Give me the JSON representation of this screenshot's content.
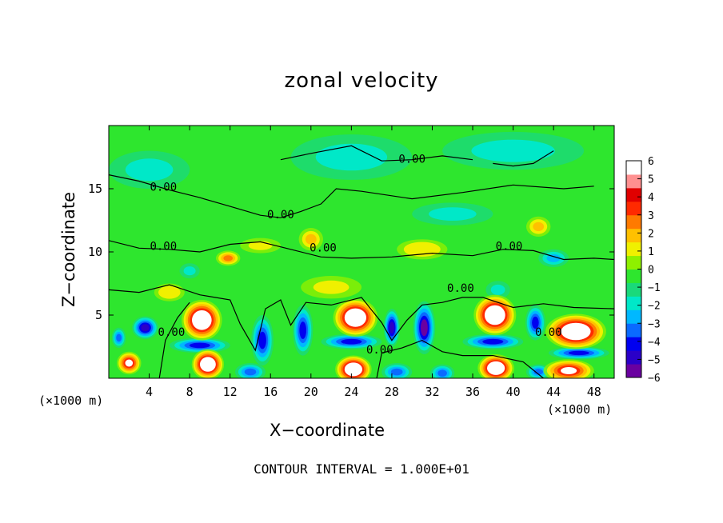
{
  "chart_data": {
    "type": "heatmap",
    "title": "zonal velocity",
    "xlabel": "X−coordinate",
    "ylabel": "Z−coordinate",
    "x_unit_left": "(×1000 m)",
    "x_unit_right": "(×1000 m)",
    "footnote": "CONTOUR INTERVAL = 1.000E+01",
    "xlim": [
      0,
      50
    ],
    "ylim": [
      0,
      20
    ],
    "x_ticks": [
      4,
      8,
      12,
      16,
      20,
      24,
      28,
      32,
      36,
      40,
      44,
      48
    ],
    "x_tick_labels": [
      "4",
      "8",
      "12",
      "16",
      "20",
      "24",
      "28",
      "32",
      "36",
      "40",
      "44",
      "48"
    ],
    "y_ticks": [
      5,
      10,
      15
    ],
    "y_tick_labels": [
      "5",
      "10",
      "15"
    ],
    "colorbar": {
      "min": -6,
      "max": 6,
      "ticks": [
        6,
        5,
        4,
        3,
        2,
        1,
        0,
        -1,
        -2,
        -3,
        -4,
        -5,
        -6
      ],
      "tick_labels": [
        "6",
        "5",
        "4",
        "3",
        "2",
        "1",
        "0",
        "−1",
        "−2",
        "−3",
        "−4",
        "−5",
        "−6"
      ],
      "colors": [
        "#6a00a0",
        "#2a00c8",
        "#0000f0",
        "#0a6aff",
        "#00b8ff",
        "#00e8c8",
        "#1ad97a",
        "#2ee62e",
        "#8ef000",
        "#f0f000",
        "#ffc000",
        "#ff7a00",
        "#ff2a00",
        "#e00000",
        "#ff9090",
        "#ffffff"
      ]
    },
    "contour_labels": [
      {
        "text": "0.00",
        "x": 30.0,
        "z": 17.3
      },
      {
        "text": "0.00",
        "x": 5.4,
        "z": 15.1
      },
      {
        "text": "0.00",
        "x": 17.0,
        "z": 12.9
      },
      {
        "text": "0.00",
        "x": 5.4,
        "z": 10.4
      },
      {
        "text": "0.00",
        "x": 21.2,
        "z": 10.3
      },
      {
        "text": "0.00",
        "x": 39.6,
        "z": 10.4
      },
      {
        "text": "0.00",
        "x": 34.8,
        "z": 7.1
      },
      {
        "text": "0.00",
        "x": 6.2,
        "z": 3.6
      },
      {
        "text": "0.00",
        "x": 26.8,
        "z": 2.2
      },
      {
        "text": "0.00",
        "x": 43.5,
        "z": 3.6
      }
    ],
    "features": [
      {
        "v": 3.0,
        "x": 20.0,
        "z": 11.0,
        "rx": 1.2,
        "rz": 0.9
      },
      {
        "v": 4.0,
        "x": 11.8,
        "z": 9.5,
        "rx": 1.2,
        "rz": 0.6
      },
      {
        "v": 3.0,
        "x": 42.5,
        "z": 12.0,
        "rx": 1.2,
        "rz": 0.8
      },
      {
        "v": 2.5,
        "x": 31.0,
        "z": 10.2,
        "rx": 2.5,
        "rz": 0.8
      },
      {
        "v": 2.0,
        "x": 22.0,
        "z": 7.2,
        "rx": 3.0,
        "rz": 0.9
      },
      {
        "v": 2.5,
        "x": 6.0,
        "z": 6.8,
        "rx": 1.5,
        "rz": 0.7
      },
      {
        "v": 2.0,
        "x": 15.0,
        "z": 10.5,
        "rx": 2.0,
        "rz": 0.6
      },
      {
        "v": -2.0,
        "x": 8.0,
        "z": 8.5,
        "rx": 1.0,
        "rz": 0.6
      },
      {
        "v": -2.2,
        "x": 44.0,
        "z": 9.5,
        "rx": 1.5,
        "rz": 0.7
      },
      {
        "v": -2.0,
        "x": 38.5,
        "z": 7.0,
        "rx": 1.2,
        "rz": 0.7
      },
      {
        "v": -1.5,
        "x": 24.0,
        "z": 17.5,
        "rx": 6.0,
        "rz": 1.8
      },
      {
        "v": -1.5,
        "x": 4.0,
        "z": 16.5,
        "rx": 4.0,
        "rz": 1.5
      },
      {
        "v": -1.2,
        "x": 40.0,
        "z": 18.0,
        "rx": 7.0,
        "rz": 1.5
      },
      {
        "v": -1.3,
        "x": 34.0,
        "z": 13.0,
        "rx": 4.0,
        "rz": 0.9
      },
      {
        "v": 7.5,
        "x": 9.2,
        "z": 4.6,
        "rx": 2.0,
        "rz": 1.6
      },
      {
        "v": 7.5,
        "x": 24.4,
        "z": 4.8,
        "rx": 2.2,
        "rz": 1.5
      },
      {
        "v": 7.5,
        "x": 38.2,
        "z": 5.0,
        "rx": 2.1,
        "rz": 1.6
      },
      {
        "v": 7.5,
        "x": 46.2,
        "z": 3.7,
        "rx": 3.0,
        "rz": 1.4
      },
      {
        "v": 7.5,
        "x": 9.8,
        "z": 1.1,
        "rx": 1.6,
        "rz": 1.2
      },
      {
        "v": 7.5,
        "x": 24.2,
        "z": 0.7,
        "rx": 1.8,
        "rz": 1.1
      },
      {
        "v": 7.5,
        "x": 38.3,
        "z": 0.8,
        "rx": 1.8,
        "rz": 1.1
      },
      {
        "v": 6.0,
        "x": 45.5,
        "z": 0.6,
        "rx": 2.5,
        "rz": 0.9
      },
      {
        "v": 6.0,
        "x": 2.0,
        "z": 1.2,
        "rx": 1.2,
        "rz": 0.9
      },
      {
        "v": -5.5,
        "x": 3.6,
        "z": 4.0,
        "rx": 1.3,
        "rz": 0.9
      },
      {
        "v": -5.0,
        "x": 15.2,
        "z": 3.0,
        "rx": 1.1,
        "rz": 2.0
      },
      {
        "v": -5.0,
        "x": 19.2,
        "z": 3.8,
        "rx": 1.0,
        "rz": 2.0
      },
      {
        "v": -6.0,
        "x": 31.2,
        "z": 4.0,
        "rx": 1.1,
        "rz": 2.1
      },
      {
        "v": -5.5,
        "x": 28.0,
        "z": 4.0,
        "rx": 0.8,
        "rz": 1.5
      },
      {
        "v": -4.5,
        "x": 42.2,
        "z": 4.4,
        "rx": 1.0,
        "rz": 1.4
      },
      {
        "v": -5.0,
        "x": 9.0,
        "z": 2.6,
        "rx": 3.0,
        "rz": 0.6
      },
      {
        "v": -5.0,
        "x": 24.0,
        "z": 2.9,
        "rx": 3.0,
        "rz": 0.6
      },
      {
        "v": -5.0,
        "x": 38.0,
        "z": 2.9,
        "rx": 3.0,
        "rz": 0.6
      },
      {
        "v": -4.5,
        "x": 46.5,
        "z": 2.0,
        "rx": 3.0,
        "rz": 0.5
      },
      {
        "v": -4.0,
        "x": 1.0,
        "z": 3.2,
        "rx": 0.7,
        "rz": 0.8
      },
      {
        "v": -4.0,
        "x": 14.0,
        "z": 0.5,
        "rx": 1.5,
        "rz": 0.7
      },
      {
        "v": -4.0,
        "x": 28.5,
        "z": 0.5,
        "rx": 1.5,
        "rz": 0.7
      },
      {
        "v": -4.0,
        "x": 33.0,
        "z": 0.4,
        "rx": 1.2,
        "rz": 0.7
      },
      {
        "v": -4.0,
        "x": 42.5,
        "z": 0.5,
        "rx": 1.2,
        "rz": 0.6
      }
    ],
    "contours": [
      [
        [
          0,
          16.1
        ],
        [
          3,
          15.6
        ],
        [
          6,
          14.9
        ],
        [
          9,
          14.3
        ],
        [
          12,
          13.6
        ],
        [
          15,
          12.9
        ],
        [
          17,
          12.7
        ],
        [
          19,
          13.2
        ],
        [
          21,
          13.8
        ],
        [
          22.5,
          15.0
        ],
        [
          25,
          14.8
        ],
        [
          30,
          14.2
        ],
        [
          35,
          14.7
        ],
        [
          40,
          15.3
        ],
        [
          45,
          15.0
        ],
        [
          48,
          15.2
        ]
      ],
      [
        [
          17,
          17.3
        ],
        [
          20,
          17.8
        ],
        [
          24,
          18.4
        ],
        [
          27,
          17.2
        ],
        [
          30,
          17.3
        ],
        [
          33,
          17.6
        ],
        [
          36,
          17.3
        ]
      ],
      [
        [
          0,
          10.9
        ],
        [
          3,
          10.3
        ],
        [
          6,
          10.2
        ],
        [
          9,
          10.0
        ],
        [
          12,
          10.6
        ],
        [
          15,
          10.8
        ],
        [
          18,
          10.2
        ],
        [
          21,
          9.6
        ],
        [
          24,
          9.5
        ],
        [
          28,
          9.6
        ],
        [
          32,
          9.9
        ],
        [
          36,
          9.7
        ],
        [
          39,
          10.2
        ],
        [
          42,
          10.1
        ],
        [
          45,
          9.4
        ],
        [
          48,
          9.5
        ],
        [
          50,
          9.4
        ]
      ],
      [
        [
          0,
          7.0
        ],
        [
          3,
          6.8
        ],
        [
          6,
          7.4
        ],
        [
          9,
          6.6
        ],
        [
          12,
          6.2
        ],
        [
          13,
          4.3
        ],
        [
          14.5,
          2.2
        ],
        [
          15.5,
          5.5
        ],
        [
          17,
          6.2
        ],
        [
          18,
          4.2
        ],
        [
          19.5,
          6.0
        ],
        [
          22,
          5.8
        ],
        [
          25,
          6.4
        ],
        [
          27,
          4.4
        ],
        [
          28,
          3.0
        ],
        [
          29.5,
          4.6
        ],
        [
          31,
          5.8
        ],
        [
          33,
          6.0
        ],
        [
          35,
          6.4
        ],
        [
          37,
          6.4
        ],
        [
          40,
          5.6
        ],
        [
          43,
          5.9
        ],
        [
          46,
          5.6
        ],
        [
          50,
          5.5
        ]
      ],
      [
        [
          5,
          0
        ],
        [
          5.6,
          3.0
        ],
        [
          6.8,
          4.8
        ],
        [
          8.0,
          6.0
        ]
      ],
      [
        [
          26.5,
          0
        ],
        [
          27,
          2.0
        ],
        [
          29,
          2.4
        ],
        [
          31,
          3.0
        ],
        [
          33,
          2.1
        ],
        [
          35,
          1.8
        ],
        [
          38,
          1.8
        ],
        [
          41,
          1.3
        ],
        [
          43,
          0
        ]
      ],
      [
        [
          38,
          17.0
        ],
        [
          40,
          16.8
        ],
        [
          42,
          17.0
        ],
        [
          44,
          18.0
        ]
      ]
    ]
  }
}
